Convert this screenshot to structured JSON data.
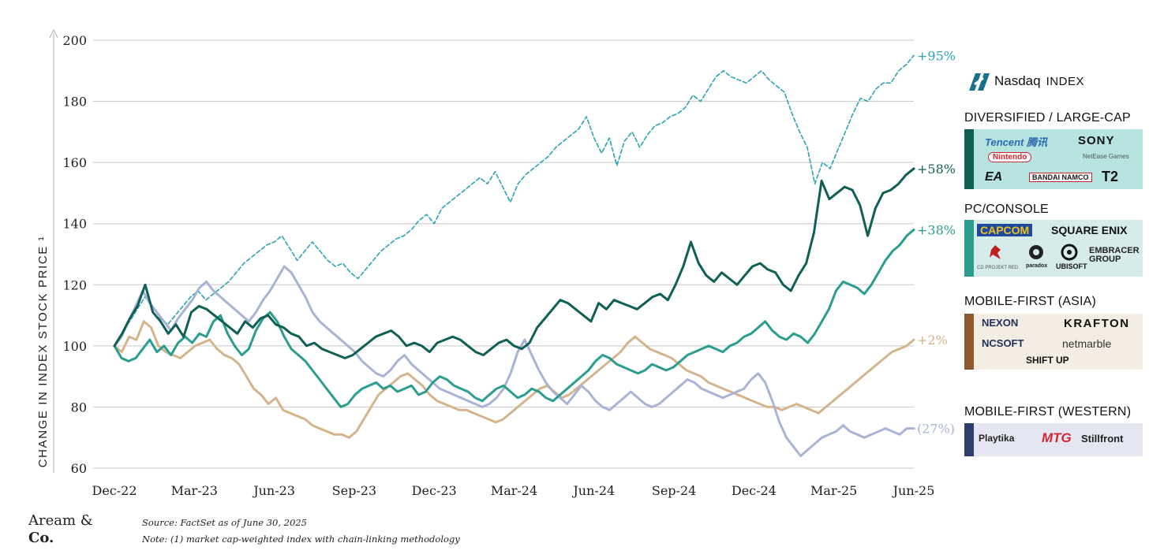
{
  "chart_data": {
    "type": "line",
    "ylabel": "CHANGE IN INDEX STOCK PRICE ¹",
    "ylim": [
      60,
      200
    ],
    "yticks": [
      60,
      80,
      100,
      120,
      140,
      160,
      180,
      200
    ],
    "xticks": [
      "Dec-22",
      "Mar-23",
      "Jun-23",
      "Sep-23",
      "Dec-23",
      "Mar-24",
      "Jun-24",
      "Sep-24",
      "Dec-24",
      "Mar-25",
      "Jun-25"
    ],
    "x_start": "Dec-22",
    "x_end": "Jun-25",
    "grid": true,
    "series": [
      {
        "name": "Nasdaq INDEX",
        "color": "#2aa3b5",
        "style": "dashed",
        "end_label": "+95%",
        "values": [
          100,
          104,
          108,
          112,
          116,
          113,
          109,
          107,
          110,
          113,
          116,
          118,
          115,
          117,
          119,
          121,
          124,
          127,
          129,
          131,
          133,
          134,
          136,
          132,
          128,
          131,
          134,
          131,
          128,
          126,
          127,
          124,
          122,
          125,
          128,
          131,
          133,
          135,
          136,
          138,
          141,
          143,
          140,
          145,
          147,
          149,
          151,
          153,
          155,
          153,
          157,
          152,
          147,
          153,
          156,
          158,
          160,
          162,
          165,
          167,
          169,
          171,
          175,
          168,
          163,
          168,
          159,
          167,
          170,
          165,
          169,
          172,
          173,
          175,
          176,
          178,
          182,
          180,
          184,
          188,
          190,
          188,
          187,
          186,
          188,
          190,
          187,
          185,
          183,
          176,
          170,
          165,
          153,
          160,
          158,
          164,
          170,
          176,
          181,
          180,
          184,
          186,
          186,
          190,
          192,
          195
        ]
      },
      {
        "name": "DIVERSIFIED / LARGE-CAP",
        "color": "#0f5f55",
        "style": "solid",
        "end_label": "+58%",
        "values": [
          100,
          104,
          109,
          113,
          120,
          111,
          108,
          104,
          107,
          103,
          111,
          113,
          112,
          110,
          108,
          106,
          104,
          108,
          106,
          109,
          110,
          107,
          106,
          104,
          103,
          100,
          101,
          99,
          98,
          97,
          96,
          97,
          99,
          101,
          103,
          104,
          105,
          103,
          100,
          101,
          100,
          98,
          101,
          102,
          103,
          102,
          100,
          98,
          97,
          99,
          101,
          102,
          100,
          99,
          101,
          106,
          109,
          112,
          115,
          114,
          112,
          110,
          108,
          114,
          112,
          115,
          114,
          113,
          112,
          114,
          116,
          117,
          115,
          120,
          126,
          134,
          127,
          123,
          121,
          124,
          122,
          120,
          123,
          126,
          127,
          125,
          124,
          120,
          118,
          123,
          127,
          137,
          154,
          148,
          150,
          152,
          151,
          146,
          136,
          145,
          150,
          151,
          153,
          156,
          158
        ]
      },
      {
        "name": "PC/CONSOLE",
        "color": "#2a9d8f",
        "style": "solid",
        "end_label": "+38%",
        "values": [
          100,
          96,
          95,
          96,
          99,
          102,
          98,
          100,
          97,
          101,
          103,
          101,
          104,
          103,
          108,
          110,
          104,
          100,
          97,
          99,
          105,
          109,
          111,
          108,
          103,
          99,
          97,
          95,
          92,
          89,
          86,
          83,
          80,
          81,
          84,
          86,
          87,
          88,
          86,
          87,
          85,
          86,
          87,
          84,
          85,
          88,
          90,
          89,
          87,
          86,
          85,
          83,
          82,
          84,
          86,
          87,
          85,
          83,
          84,
          86,
          85,
          83,
          82,
          84,
          86,
          88,
          90,
          92,
          95,
          97,
          96,
          94,
          93,
          92,
          91,
          92,
          94,
          93,
          92,
          93,
          95,
          97,
          98,
          99,
          100,
          99,
          98,
          100,
          101,
          103,
          104,
          106,
          108,
          105,
          103,
          102,
          104,
          103,
          101,
          104,
          108,
          112,
          118,
          121,
          120,
          119,
          117,
          120,
          124,
          128,
          131,
          133,
          136,
          138
        ]
      },
      {
        "name": "MOBILE-FIRST (ASIA)",
        "color": "#d5b48c",
        "style": "solid",
        "end_label": "+2%",
        "values": [
          100,
          98,
          103,
          102,
          108,
          106,
          100,
          98,
          97,
          96,
          98,
          100,
          101,
          102,
          99,
          97,
          96,
          94,
          90,
          86,
          84,
          81,
          83,
          79,
          78,
          77,
          76,
          74,
          73,
          72,
          71,
          71,
          70,
          72,
          76,
          80,
          84,
          86,
          88,
          90,
          91,
          89,
          87,
          84,
          82,
          81,
          80,
          79,
          79,
          78,
          77,
          76,
          75,
          76,
          78,
          80,
          82,
          84,
          86,
          87,
          85,
          83,
          84,
          86,
          88,
          90,
          92,
          94,
          96,
          98,
          101,
          103,
          101,
          99,
          98,
          97,
          96,
          94,
          92,
          91,
          90,
          88,
          87,
          86,
          85,
          84,
          83,
          82,
          81,
          80,
          80,
          79,
          80,
          81,
          80,
          79,
          78,
          80,
          82,
          84,
          86,
          88,
          90,
          92,
          94,
          96,
          98,
          99,
          100,
          102
        ]
      },
      {
        "name": "MOBILE-FIRST (WESTERN)",
        "color": "#a9b3d6",
        "style": "solid",
        "end_label": "(27%)",
        "values": [
          100,
          103,
          108,
          113,
          118,
          114,
          111,
          108,
          105,
          109,
          112,
          115,
          119,
          121,
          118,
          116,
          114,
          112,
          110,
          108,
          111,
          115,
          118,
          122,
          126,
          124,
          120,
          116,
          111,
          108,
          106,
          104,
          102,
          100,
          98,
          95,
          93,
          91,
          90,
          92,
          95,
          97,
          94,
          92,
          90,
          88,
          86,
          85,
          84,
          83,
          82,
          81,
          80,
          81,
          83,
          86,
          91,
          98,
          102,
          97,
          92,
          88,
          85,
          83,
          81,
          84,
          87,
          85,
          82,
          80,
          79,
          81,
          83,
          85,
          83,
          81,
          80,
          81,
          83,
          85,
          87,
          89,
          88,
          86,
          85,
          84,
          83,
          84,
          85,
          86,
          89,
          91,
          88,
          82,
          75,
          70,
          67,
          64,
          66,
          68,
          70,
          71,
          72,
          74,
          72,
          71,
          70,
          71,
          72,
          73,
          72,
          71,
          73,
          73
        ]
      }
    ]
  },
  "legend": {
    "nasdaq": {
      "logo": "Nasdaq",
      "suffix": "INDEX"
    },
    "categories": [
      {
        "title": "DIVERSIFIED / LARGE-CAP",
        "stripe_color": "#0f5f55",
        "bg": "#b7e3e0",
        "logos": [
          "Tencent 腾讯",
          "SONY",
          "Nintendo",
          "NetEase Games",
          "EA",
          "BANDAI NAMCO",
          "T2"
        ]
      },
      {
        "title": "PC/CONSOLE",
        "stripe_color": "#2a9d8f",
        "bg": "#d5ecea",
        "logos": [
          "CAPCOM",
          "SQUARE ENIX",
          "CD PROJEKT RED",
          "paradox",
          "UBISOFT",
          "EMBRACER GROUP"
        ]
      },
      {
        "title": "MOBILE-FIRST (ASIA)",
        "stripe_color": "#8c5a2e",
        "bg": "#f3ede3",
        "logos": [
          "NEXON",
          "KRAFTON",
          "NCSOFT",
          "netmarble",
          "SHIFT UP"
        ]
      },
      {
        "title": "MOBILE-FIRST (WESTERN)",
        "stripe_color": "#2e3d6b",
        "bg": "#e4e7f2",
        "logos": [
          "Playtika",
          "MTG",
          "Stillfront"
        ]
      }
    ]
  },
  "footer": {
    "brand_line1": "Aream &",
    "brand_line2": "Co.",
    "source": "Source: FactSet as of June 30, 2025",
    "note": "Note: (1) market cap-weighted index with chain-linking methodology"
  }
}
